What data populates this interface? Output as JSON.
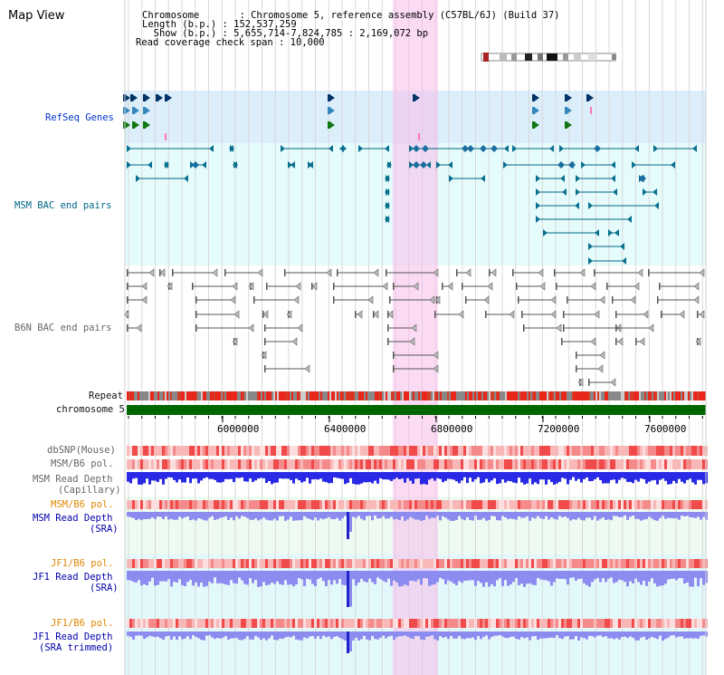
{
  "app": {
    "title": "Map View"
  },
  "header": {
    "lines": [
      "Chromosome       : Chromosome 5, reference assembly (C57BL/6J) (Build 37)",
      "Length (b.p.) : 152,537,259",
      "  Show (b.p.) : 5,655,714-7,824,785 : 2,169,072 bp",
      "Read coverage check span : 10,000"
    ]
  },
  "tracks": {
    "refseq": "RefSeq Genes",
    "msm_bac": "MSM BAC end pairs",
    "b6n_bac": "B6N BAC end pairs",
    "repeat": "Repeat",
    "chromosome": "chromosome 5",
    "dbsnp": "dbSNP(Mouse)",
    "msm_b6_pol_1": "MSM/B6 pol.",
    "msm_read_depth_cap_1": "MSM Read Depth",
    "msm_read_depth_cap_2": "(Capillary)",
    "msm_b6_pol_2": "MSM/B6 pol.",
    "msm_read_depth_sra_1": "MSM Read Depth",
    "msm_read_depth_sra_2": "(SRA)",
    "jf1_b6_pol_1": "JF1/B6 pol.",
    "jf1_read_depth_sra_1": "JF1 Read Depth",
    "jf1_read_depth_sra_2": "(SRA)",
    "jf1_b6_pol_2": "JF1/B6 pol.",
    "jf1_read_depth_trim_1": "JF1 Read Depth",
    "jf1_read_depth_trim_2": "(SRA trimmed)"
  },
  "axis": {
    "ticks": [
      "6000000",
      "6400000",
      "6800000",
      "7200000",
      "7600000"
    ]
  },
  "colors": {
    "refseq_bg": "#dff0fb",
    "cyan_bg": "#e8fbfb",
    "highlight": "#f8d8f0",
    "chromosome_bar": "#006600",
    "depth_dark": "#2a2ae6",
    "depth_light": "#8c8cf0",
    "pol_red": "#f06060"
  }
}
